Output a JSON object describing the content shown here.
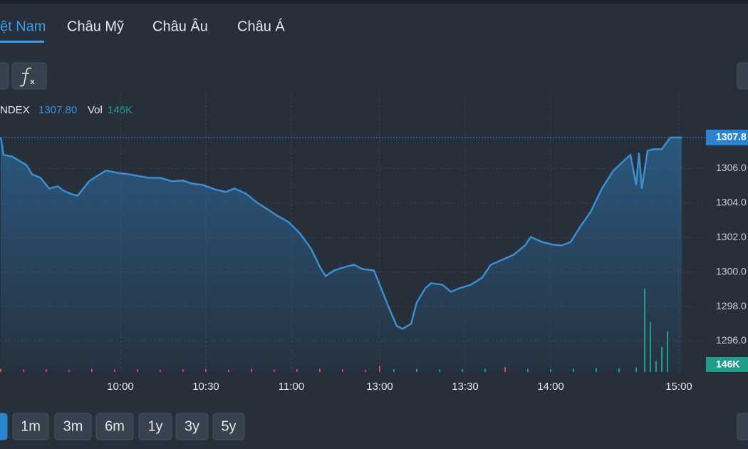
{
  "tabs": [
    "ệt Nam",
    "Châu Mỹ",
    "Châu Âu",
    "Châu Á"
  ],
  "ranges": [
    "1m",
    "3m",
    "6m",
    "1y",
    "3y",
    "5y"
  ],
  "chart_data": {
    "type": "line",
    "legend_symbol": "NDEX",
    "last_price_label": "1307.80",
    "vol_label": "Vol",
    "last_volume_label": "146K",
    "axis_price_label": "1307.8",
    "axis_volume_label": "146K",
    "xlim": [
      0,
      250
    ],
    "xticks": [
      {
        "value": 45,
        "label": "10:00"
      },
      {
        "value": 75,
        "label": "10:30"
      },
      {
        "value": 105,
        "label": "11:00"
      },
      {
        "value": 136,
        "label": "13:00"
      },
      {
        "value": 166,
        "label": "13:30"
      },
      {
        "value": 196,
        "label": "14:00"
      },
      {
        "value": 241,
        "label": "15:00"
      }
    ],
    "ylim": [
      1294.2,
      1310.4
    ],
    "yticks": [
      {
        "value": 1296,
        "label": "1296.0"
      },
      {
        "value": 1298,
        "label": "1298.0"
      },
      {
        "value": 1300,
        "label": "1300.0"
      },
      {
        "value": 1302,
        "label": "1302.0"
      },
      {
        "value": 1304,
        "label": "1304.0"
      },
      {
        "value": 1306,
        "label": "1306.0"
      }
    ],
    "grid": true,
    "series": [
      {
        "color": "#3a8fd0",
        "x": [
          3,
          4,
          7,
          9,
          12,
          14,
          17,
          20,
          23,
          25,
          28,
          30,
          32,
          34,
          37,
          40,
          44,
          48,
          52,
          55,
          59,
          63,
          67,
          70,
          74,
          78,
          82,
          85,
          89,
          93,
          97,
          100,
          104,
          108,
          112,
          115,
          117,
          120,
          124,
          127,
          130,
          134,
          137,
          139,
          142,
          144,
          147,
          149,
          152,
          154,
          158,
          161,
          164,
          168,
          172,
          175,
          179,
          183,
          187,
          189,
          193,
          197,
          200,
          203,
          207,
          210,
          214,
          218,
          222,
          224,
          226,
          227,
          228,
          230,
          232,
          235,
          238,
          242
        ],
        "values": [
          1307.82,
          1306.79,
          1306.7,
          1306.5,
          1306.21,
          1305.67,
          1305.46,
          1304.84,
          1304.97,
          1304.72,
          1304.51,
          1304.43,
          1304.84,
          1305.26,
          1305.59,
          1305.88,
          1305.75,
          1305.67,
          1305.55,
          1305.46,
          1305.46,
          1305.26,
          1305.3,
          1305.13,
          1305.05,
          1304.8,
          1304.64,
          1304.84,
          1304.55,
          1304.02,
          1303.6,
          1303.27,
          1302.9,
          1302.24,
          1301.33,
          1300.3,
          1299.76,
          1300.09,
          1300.3,
          1300.42,
          1300.17,
          1300.09,
          1298.85,
          1298.02,
          1296.87,
          1296.7,
          1296.99,
          1298.23,
          1299.06,
          1299.35,
          1299.26,
          1298.85,
          1299.06,
          1299.26,
          1299.68,
          1300.42,
          1300.71,
          1301.0,
          1301.54,
          1302.03,
          1301.74,
          1301.58,
          1301.54,
          1301.74,
          1302.78,
          1303.48,
          1304.84,
          1305.88,
          1306.5,
          1306.79,
          1305.05,
          1306.91,
          1304.84,
          1307.03,
          1307.12,
          1307.12,
          1307.8,
          1307.8
        ]
      }
    ],
    "volume": {
      "x": [
        3,
        11,
        19,
        27,
        35,
        43,
        51,
        59,
        67,
        75,
        83,
        91,
        99,
        107,
        115,
        123,
        131,
        136,
        141,
        149,
        157,
        165,
        173,
        180,
        188,
        196,
        204,
        212,
        220,
        226,
        229,
        231,
        233,
        235,
        237
      ],
      "values": [
        12,
        9,
        10,
        8,
        11,
        9,
        10,
        8,
        9,
        10,
        8,
        11,
        9,
        10,
        12,
        9,
        8,
        22,
        10,
        11,
        9,
        10,
        12,
        18,
        11,
        10,
        12,
        14,
        13,
        15,
        300,
        180,
        40,
        90,
        146
      ],
      "colors": [
        "#c9505c",
        "#c9505c",
        "#c9505c",
        "#c9505c",
        "#c9505c",
        "#c9505c",
        "#c9505c",
        "#c9505c",
        "#c9505c",
        "#c9505c",
        "#c9505c",
        "#c9505c",
        "#c9505c",
        "#c9505c",
        "#c9505c",
        "#c9505c",
        "#c9505c",
        "#c9505c",
        "#1f9e8a",
        "#1f9e8a",
        "#1f9e8a",
        "#1f9e8a",
        "#1f9e8a",
        "#c9505c",
        "#1f9e8a",
        "#1f9e8a",
        "#1f9e8a",
        "#1f9e8a",
        "#1f9e8a",
        "#1f9e8a",
        "#1f9e8a",
        "#1f9e8a",
        "#1f9e8a",
        "#1f9e8a",
        "#1f9e8a"
      ]
    }
  }
}
